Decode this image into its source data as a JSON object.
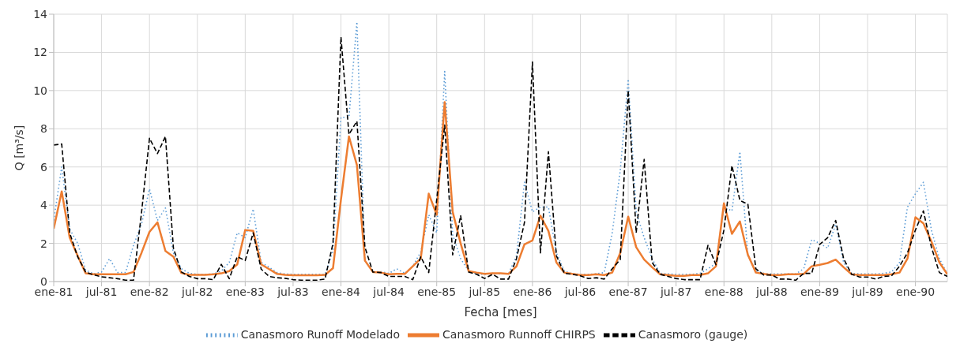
{
  "chart_data": {
    "type": "line",
    "xlabel": "Fecha [mes]",
    "ylabel": "Q [m³/s]",
    "ylim": [
      0,
      14
    ],
    "yticks": [
      0,
      2,
      4,
      6,
      8,
      10,
      12,
      14
    ],
    "xlim": [
      "1981-01",
      "1990-05"
    ],
    "xticks": [
      {
        "value": "1981-01",
        "label": "ene-81"
      },
      {
        "value": "1981-07",
        "label": "jul-81"
      },
      {
        "value": "1982-01",
        "label": "ene-82"
      },
      {
        "value": "1982-07",
        "label": "jul-82"
      },
      {
        "value": "1983-01",
        "label": "ene-83"
      },
      {
        "value": "1983-07",
        "label": "jul-83"
      },
      {
        "value": "1984-01",
        "label": "ene-84"
      },
      {
        "value": "1984-07",
        "label": "jul-84"
      },
      {
        "value": "1985-01",
        "label": "ene-85"
      },
      {
        "value": "1985-07",
        "label": "jul-85"
      },
      {
        "value": "1986-01",
        "label": "ene-86"
      },
      {
        "value": "1986-07",
        "label": "jul-86"
      },
      {
        "value": "1987-01",
        "label": "ene-87"
      },
      {
        "value": "1987-07",
        "label": "jul-87"
      },
      {
        "value": "1988-01",
        "label": "ene-88"
      },
      {
        "value": "1988-07",
        "label": "jul-88"
      },
      {
        "value": "1989-01",
        "label": "ene-89"
      },
      {
        "value": "1989-07",
        "label": "jul-89"
      },
      {
        "value": "1990-01",
        "label": "ene-90"
      }
    ],
    "x": [
      "1981-01",
      "1981-02",
      "1981-03",
      "1981-04",
      "1981-05",
      "1981-06",
      "1981-07",
      "1981-08",
      "1981-09",
      "1981-10",
      "1981-11",
      "1981-12",
      "1982-01",
      "1982-02",
      "1982-03",
      "1982-04",
      "1982-05",
      "1982-06",
      "1982-07",
      "1982-08",
      "1982-09",
      "1982-10",
      "1982-11",
      "1982-12",
      "1983-01",
      "1983-02",
      "1983-03",
      "1983-04",
      "1983-05",
      "1983-06",
      "1983-07",
      "1983-08",
      "1983-09",
      "1983-10",
      "1983-11",
      "1983-12",
      "1984-01",
      "1984-02",
      "1984-03",
      "1984-04",
      "1984-05",
      "1984-06",
      "1984-07",
      "1984-08",
      "1984-09",
      "1984-10",
      "1984-11",
      "1984-12",
      "1985-01",
      "1985-02",
      "1985-03",
      "1985-04",
      "1985-05",
      "1985-06",
      "1985-07",
      "1985-08",
      "1985-09",
      "1985-10",
      "1985-11",
      "1985-12",
      "1986-01",
      "1986-02",
      "1986-03",
      "1986-04",
      "1986-05",
      "1986-06",
      "1986-07",
      "1986-08",
      "1986-09",
      "1986-10",
      "1986-11",
      "1986-12",
      "1987-01",
      "1987-02",
      "1987-03",
      "1987-04",
      "1987-05",
      "1987-06",
      "1987-07",
      "1987-08",
      "1987-09",
      "1987-10",
      "1987-11",
      "1987-12",
      "1988-01",
      "1988-02",
      "1988-03",
      "1988-04",
      "1988-05",
      "1988-06",
      "1988-07",
      "1988-08",
      "1988-09",
      "1988-10",
      "1988-11",
      "1988-12",
      "1989-01",
      "1989-02",
      "1989-03",
      "1989-04",
      "1989-05",
      "1989-06",
      "1989-07",
      "1989-08",
      "1989-09",
      "1989-10",
      "1989-11",
      "1989-12",
      "1990-01",
      "1990-02",
      "1990-03",
      "1990-04",
      "1990-05"
    ],
    "series": [
      {
        "name": "Canasmoro Runoff Modelado",
        "color": "#5b9bd5",
        "line_style": "dotted",
        "values": [
          3.2,
          6.0,
          2.75,
          2.0,
          0.6,
          0.4,
          0.5,
          1.2,
          0.47,
          0.47,
          1.9,
          3.0,
          4.85,
          3.2,
          3.85,
          1.5,
          0.67,
          0.43,
          0.38,
          0.38,
          0.4,
          0.55,
          1.0,
          2.55,
          2.3,
          3.8,
          1.0,
          0.75,
          0.47,
          0.4,
          0.38,
          0.38,
          0.38,
          0.38,
          0.38,
          1.6,
          8.6,
          8.6,
          13.6,
          1.1,
          0.5,
          0.52,
          0.43,
          0.67,
          0.43,
          0.8,
          1.55,
          3.5,
          2.55,
          11.0,
          2.45,
          1.2,
          0.55,
          0.4,
          0.38,
          0.43,
          0.4,
          0.4,
          1.35,
          5.2,
          3.65,
          3.9,
          3.9,
          1.5,
          0.55,
          0.4,
          0.38,
          0.38,
          0.4,
          0.47,
          2.55,
          5.8,
          10.6,
          3.65,
          2.3,
          1.2,
          0.43,
          0.4,
          0.38,
          0.38,
          0.38,
          0.43,
          0.67,
          0.95,
          3.9,
          3.7,
          6.8,
          1.35,
          0.57,
          0.43,
          0.4,
          0.4,
          0.4,
          0.4,
          0.67,
          2.2,
          2.0,
          1.75,
          3.0,
          1.0,
          0.43,
          0.4,
          0.4,
          0.4,
          0.43,
          0.5,
          1.0,
          3.9,
          4.6,
          5.2,
          2.7,
          1.2,
          0.4
        ]
      },
      {
        "name": "Canasmoro Runnoff CHIRPS",
        "color": "#ed7d31",
        "line_style": "solid",
        "values": [
          2.77,
          4.72,
          2.3,
          1.35,
          0.43,
          0.38,
          0.38,
          0.38,
          0.38,
          0.38,
          0.5,
          1.5,
          2.6,
          3.1,
          1.6,
          1.3,
          0.45,
          0.35,
          0.35,
          0.35,
          0.38,
          0.43,
          0.55,
          0.9,
          2.7,
          2.65,
          0.9,
          0.65,
          0.4,
          0.35,
          0.33,
          0.33,
          0.33,
          0.33,
          0.35,
          0.7,
          4.3,
          7.6,
          6.1,
          1.1,
          0.5,
          0.47,
          0.38,
          0.4,
          0.4,
          0.8,
          1.2,
          4.6,
          3.5,
          9.4,
          3.65,
          2.0,
          0.55,
          0.47,
          0.4,
          0.43,
          0.43,
          0.4,
          0.8,
          1.95,
          2.15,
          3.45,
          2.65,
          1.0,
          0.47,
          0.4,
          0.34,
          0.34,
          0.38,
          0.34,
          0.47,
          1.5,
          3.4,
          1.8,
          1.15,
          0.75,
          0.38,
          0.34,
          0.3,
          0.3,
          0.34,
          0.34,
          0.43,
          0.8,
          4.1,
          2.5,
          3.15,
          1.4,
          0.47,
          0.4,
          0.34,
          0.34,
          0.38,
          0.38,
          0.4,
          0.8,
          0.88,
          0.97,
          1.15,
          0.75,
          0.38,
          0.34,
          0.34,
          0.34,
          0.34,
          0.38,
          0.47,
          1.2,
          3.37,
          3.05,
          2.1,
          1.0,
          0.38
        ]
      },
      {
        "name": "Canasmoro (gauge)",
        "color": "#000000",
        "line_style": "dashed",
        "values": [
          7.15,
          7.2,
          2.55,
          1.3,
          0.5,
          0.35,
          0.25,
          0.2,
          0.15,
          0.07,
          0.07,
          3.6,
          7.5,
          6.7,
          7.6,
          1.75,
          0.5,
          0.27,
          0.15,
          0.15,
          0.1,
          0.9,
          0.15,
          1.3,
          1.1,
          2.55,
          0.65,
          0.27,
          0.2,
          0.17,
          0.1,
          0.07,
          0.07,
          0.07,
          0.13,
          2.0,
          12.8,
          7.7,
          8.4,
          1.8,
          0.5,
          0.47,
          0.27,
          0.27,
          0.27,
          0.1,
          1.3,
          0.47,
          4.3,
          8.2,
          1.4,
          3.45,
          0.5,
          0.38,
          0.16,
          0.38,
          0.13,
          0.13,
          1.2,
          3.1,
          11.5,
          1.5,
          6.8,
          1.35,
          0.43,
          0.38,
          0.3,
          0.16,
          0.2,
          0.13,
          0.67,
          1.15,
          10.0,
          2.55,
          6.4,
          1.0,
          0.38,
          0.27,
          0.16,
          0.1,
          0.1,
          0.1,
          1.9,
          0.88,
          2.7,
          6.07,
          4.25,
          4.05,
          0.67,
          0.34,
          0.34,
          0.13,
          0.13,
          0.07,
          0.43,
          0.43,
          1.95,
          2.3,
          3.2,
          1.2,
          0.38,
          0.24,
          0.24,
          0.13,
          0.27,
          0.3,
          0.8,
          1.5,
          2.7,
          3.7,
          1.8,
          0.47,
          0.27
        ]
      }
    ],
    "grid": true,
    "legend": "bottom"
  }
}
